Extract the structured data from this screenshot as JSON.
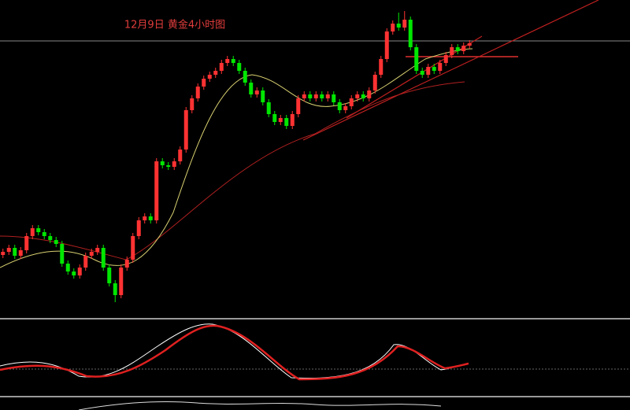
{
  "chart_data": {
    "type": "candlestick",
    "title": "12月9日 黄金4小时图",
    "ylim": [
      0,
      100
    ],
    "up_color": "#ff3232",
    "down_color": "#00e600",
    "open": [
      19,
      20,
      21.25,
      18.75,
      20.5,
      25,
      27.5,
      26.25,
      25,
      23.75,
      22.5,
      16.25,
      13.75,
      12.5,
      15,
      18.75,
      20,
      21.25,
      15,
      10,
      6.25,
      15,
      17.5,
      25,
      30,
      31.25,
      30,
      48.75,
      47.5,
      47,
      48.75,
      52.5,
      65,
      68.75,
      72.5,
      75,
      76.25,
      77.5,
      80,
      81.25,
      80,
      77.5,
      73.75,
      70,
      71.25,
      67.5,
      63.75,
      61.25,
      62.5,
      60,
      63.75,
      68.75,
      70,
      68.75,
      70,
      68.75,
      70,
      67.5,
      65,
      66.25,
      68.75,
      70,
      68.75,
      71.25,
      76.25,
      81.25,
      90,
      92.5,
      91.25,
      93.75,
      85,
      77.5,
      76.25,
      78.75,
      77.5,
      80,
      82.5,
      85,
      83.75,
      85.5
    ],
    "high": [
      21,
      22.25,
      22.25,
      21.5,
      26,
      28.5,
      28.5,
      27.25,
      26,
      24.75,
      23.5,
      17.25,
      14.75,
      16,
      19.75,
      21,
      22.25,
      22.25,
      16,
      11,
      16,
      18.5,
      26,
      31,
      32.25,
      32.25,
      49.75,
      49.75,
      48.5,
      49.75,
      53.5,
      66,
      69.75,
      73.5,
      76,
      77.25,
      78.5,
      81,
      82.25,
      82.25,
      81,
      78.5,
      74.75,
      72.25,
      72.25,
      68.5,
      64.75,
      63.5,
      63.5,
      64.75,
      69.75,
      71,
      71,
      71,
      71,
      71,
      71,
      68.5,
      67.25,
      69.75,
      71,
      71,
      72.25,
      77.25,
      82.25,
      91,
      93.5,
      96,
      96.5,
      94.75,
      86,
      78.5,
      79.75,
      79.75,
      81,
      83.5,
      86,
      86,
      86.5,
      87.25
    ],
    "low": [
      18,
      19,
      17.75,
      17.75,
      19.5,
      24,
      25.25,
      24,
      22.75,
      21.5,
      15.25,
      12.75,
      11.5,
      11.5,
      14,
      17.75,
      19,
      14,
      9,
      4,
      5.25,
      14,
      16.5,
      24,
      29,
      29,
      29,
      46.5,
      46,
      46,
      47.75,
      51.5,
      64,
      67.75,
      71.5,
      74,
      75.25,
      76.5,
      79,
      79,
      76.5,
      72.75,
      69,
      69,
      66.5,
      62.75,
      60.25,
      60.25,
      59,
      59,
      62.75,
      67.75,
      67.75,
      67.75,
      67.75,
      67.75,
      66.5,
      64,
      64,
      65.25,
      67.75,
      67.75,
      67.75,
      70.25,
      75.25,
      80.25,
      89,
      90.25,
      90.25,
      84,
      76.5,
      75.25,
      75.25,
      76.5,
      76.5,
      79,
      81.5,
      82.75,
      82.75,
      84.5
    ],
    "close": [
      20,
      21.25,
      18.75,
      20.5,
      25,
      27.5,
      26.25,
      25,
      23.75,
      22.5,
      16.25,
      13.75,
      12.5,
      15,
      18.75,
      20,
      21.25,
      15,
      10,
      6.25,
      15,
      17.5,
      25,
      30,
      31.25,
      30,
      48.75,
      47.5,
      47,
      48.75,
      52.5,
      65,
      68.75,
      72.5,
      75,
      76.25,
      77.5,
      80,
      81.25,
      80,
      77.5,
      73.75,
      70,
      71.25,
      67.5,
      63.75,
      61.25,
      62.5,
      60,
      63.75,
      68.75,
      70,
      68.75,
      70,
      68.75,
      70,
      67.5,
      65,
      66.25,
      68.75,
      70,
      68.75,
      71.25,
      76.25,
      81.25,
      90,
      92.5,
      91.25,
      93.75,
      85,
      77.5,
      76.25,
      78.75,
      77.5,
      80,
      82.5,
      85,
      83.75,
      85.5,
      86.25
    ]
  }
}
